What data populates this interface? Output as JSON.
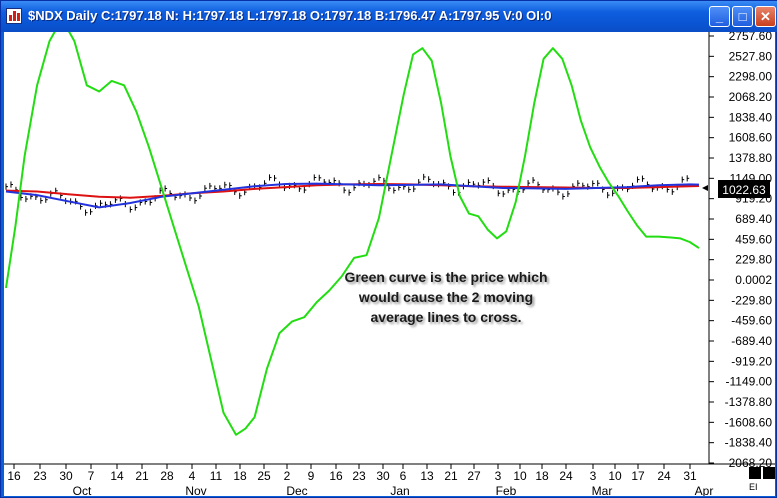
{
  "window": {
    "title": "$NDX Daily C:1797.18 N: H:1797.18 L:1797.18 O:1797.18 B:1796.47 A:1797.95 V:0 OI:0",
    "minimize_icon": "minimize-icon",
    "maximize_icon": "maximize-icon",
    "close_icon": "close-icon"
  },
  "annotation": {
    "line1": "Green curve is the price which",
    "line2": "would cause the 2 moving",
    "line3": "average lines to cross."
  },
  "price_marker": "1022.63",
  "corner_label": "EI",
  "colors": {
    "crossover_price": "#22dd11",
    "ma_fast": "#2233dd",
    "ma_slow": "#dd1111",
    "price_bars": "#000000",
    "title_bar": "#0a55d4"
  },
  "chart_data": {
    "type": "line",
    "title": "",
    "xlabel": "",
    "ylabel": "",
    "ylim": [
      -2068.2,
      2757.6
    ],
    "y_ticks": [
      "2757.60",
      "2527.80",
      "2298.00",
      "2068.20",
      "1838.40",
      "1608.60",
      "1378.80",
      "1149.00",
      "919.20",
      "689.40",
      "459.60",
      "229.80",
      "0.0002",
      "-229.80",
      "-459.60",
      "-689.40",
      "-919.20",
      "-1149.00",
      "-1378.80",
      "-1608.60",
      "-1838.40",
      "-2068.20"
    ],
    "x_day_ticks": [
      "16",
      "23",
      "30",
      "7",
      "14",
      "21",
      "28",
      "4",
      "11",
      "18",
      "25",
      "2",
      "9",
      "16",
      "23",
      "30",
      "6",
      "13",
      "21",
      "27",
      "3",
      "10",
      "18",
      "24",
      "3",
      "10",
      "17",
      "24",
      "31"
    ],
    "x_month_labels": [
      "Oct",
      "Nov",
      "Dec",
      "Jan",
      "Feb",
      "Mar",
      "Apr"
    ],
    "series": [
      {
        "color": "#22dd11",
        "points": [
          [
            0,
            -90
          ],
          [
            3,
            600
          ],
          [
            6,
            1400
          ],
          [
            10,
            2200
          ],
          [
            14,
            2700
          ],
          [
            18,
            2950
          ],
          [
            22,
            2700
          ],
          [
            26,
            2200
          ],
          [
            30,
            2130
          ],
          [
            34,
            2250
          ],
          [
            38,
            2200
          ],
          [
            42,
            1900
          ],
          [
            46,
            1500
          ],
          [
            50,
            1050
          ],
          [
            54,
            600
          ],
          [
            58,
            150
          ],
          [
            62,
            -300
          ],
          [
            66,
            -900
          ],
          [
            70,
            -1500
          ],
          [
            74,
            -1750
          ],
          [
            77,
            -1680
          ],
          [
            80,
            -1550
          ],
          [
            84,
            -1000
          ],
          [
            88,
            -600
          ],
          [
            92,
            -470
          ],
          [
            96,
            -420
          ],
          [
            100,
            -250
          ],
          [
            104,
            -120
          ],
          [
            108,
            40
          ],
          [
            112,
            250
          ],
          [
            116,
            280
          ],
          [
            120,
            700
          ],
          [
            124,
            1400
          ],
          [
            128,
            2100
          ],
          [
            131,
            2550
          ],
          [
            134,
            2620
          ],
          [
            137,
            2480
          ],
          [
            140,
            2000
          ],
          [
            143,
            1400
          ],
          [
            146,
            950
          ],
          [
            149,
            750
          ],
          [
            152,
            720
          ],
          [
            155,
            570
          ],
          [
            158,
            470
          ],
          [
            161,
            550
          ],
          [
            164,
            880
          ],
          [
            167,
            1400
          ],
          [
            170,
            2000
          ],
          [
            173,
            2500
          ],
          [
            176,
            2620
          ],
          [
            179,
            2500
          ],
          [
            182,
            2200
          ],
          [
            185,
            1800
          ],
          [
            188,
            1500
          ],
          [
            191,
            1280
          ],
          [
            194,
            1100
          ],
          [
            197,
            950
          ],
          [
            200,
            780
          ],
          [
            203,
            620
          ],
          [
            206,
            490
          ],
          [
            210,
            490
          ],
          [
            214,
            480
          ],
          [
            217,
            470
          ],
          [
            220,
            430
          ],
          [
            223,
            360
          ]
        ]
      },
      {
        "color": "#2233dd",
        "points": [
          [
            0,
            1000
          ],
          [
            10,
            960
          ],
          [
            20,
            890
          ],
          [
            30,
            820
          ],
          [
            40,
            870
          ],
          [
            50,
            940
          ],
          [
            60,
            980
          ],
          [
            70,
            1020
          ],
          [
            80,
            1060
          ],
          [
            90,
            1085
          ],
          [
            100,
            1090
          ],
          [
            110,
            1080
          ],
          [
            120,
            1070
          ],
          [
            130,
            1075
          ],
          [
            140,
            1080
          ],
          [
            150,
            1060
          ],
          [
            160,
            1040
          ],
          [
            170,
            1035
          ],
          [
            180,
            1030
          ],
          [
            190,
            1040
          ],
          [
            200,
            1050
          ],
          [
            210,
            1070
          ],
          [
            220,
            1080
          ],
          [
            223,
            1078
          ]
        ]
      },
      {
        "color": "#dd1111",
        "points": [
          [
            0,
            1010
          ],
          [
            10,
            1000
          ],
          [
            20,
            970
          ],
          [
            30,
            940
          ],
          [
            40,
            930
          ],
          [
            50,
            950
          ],
          [
            60,
            980
          ],
          [
            70,
            1000
          ],
          [
            80,
            1030
          ],
          [
            90,
            1050
          ],
          [
            100,
            1070
          ],
          [
            110,
            1080
          ],
          [
            120,
            1085
          ],
          [
            130,
            1080
          ],
          [
            140,
            1070
          ],
          [
            150,
            1060
          ],
          [
            160,
            1055
          ],
          [
            170,
            1050
          ],
          [
            180,
            1045
          ],
          [
            190,
            1040
          ],
          [
            200,
            1040
          ],
          [
            210,
            1050
          ],
          [
            220,
            1060
          ],
          [
            223,
            1062
          ]
        ]
      }
    ]
  }
}
